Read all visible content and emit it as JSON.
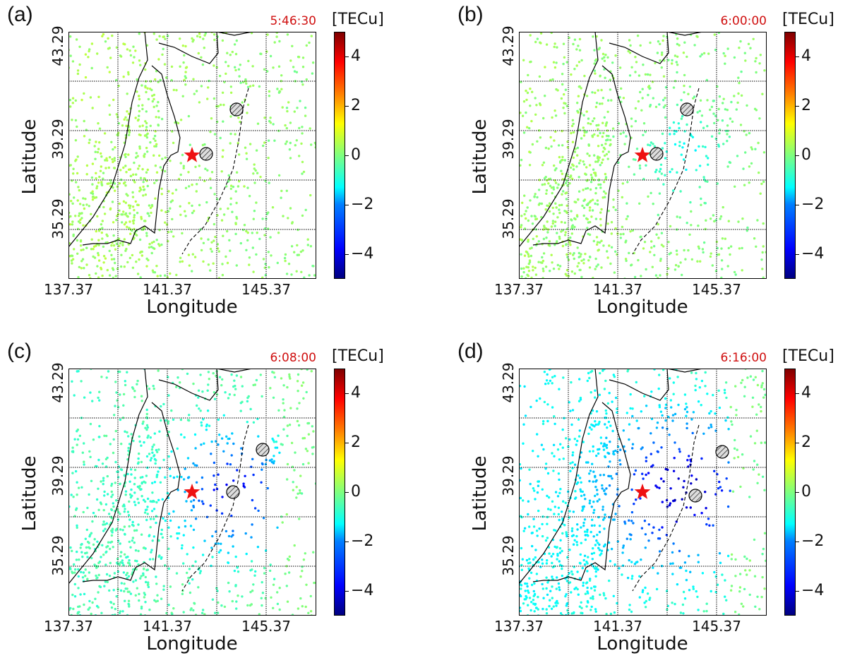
{
  "colorbar": {
    "unit": "[TECu]",
    "ticks": [
      "4",
      "2",
      "0",
      "−2",
      "−4"
    ],
    "range": [
      -5,
      5
    ]
  },
  "axes": {
    "xlabel": "Longitude",
    "ylabel": "Latitude",
    "xticks": [
      "137.37",
      "141.37",
      "145.37"
    ],
    "yticks": [
      "43.29",
      "39.29",
      "35.29"
    ]
  },
  "markers": {
    "epicenter_color": "#ee1111",
    "epicenter_icon": "star-icon",
    "hatched_icon": "hatched-circle-icon"
  },
  "panels": [
    {
      "label": "(a)",
      "time": "5:46:30",
      "base": 0.35,
      "amp": 0.0,
      "spread": 1.0
    },
    {
      "label": "(b)",
      "time": "6:00:00",
      "base": 0.25,
      "amp": -1.3,
      "spread": 1.0
    },
    {
      "label": "(c)",
      "time": "6:08:00",
      "base": -0.6,
      "amp": -3.6,
      "spread": 1.25
    },
    {
      "label": "(d)",
      "time": "6:16:00",
      "base": -1.2,
      "amp": -3.8,
      "spread": 1.6
    }
  ]
}
